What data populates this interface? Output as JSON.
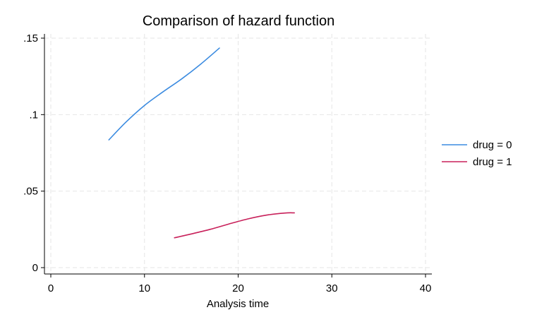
{
  "chart_data": {
    "type": "line",
    "title": "Comparison of hazard function",
    "xlabel": "Analysis time",
    "ylabel": "",
    "xlim": [
      0,
      40
    ],
    "ylim": [
      0,
      0.15
    ],
    "x_ticks": [
      0,
      10,
      20,
      30,
      40
    ],
    "x_tick_labels": [
      "0",
      "10",
      "20",
      "30",
      "40"
    ],
    "y_ticks": [
      0,
      0.05,
      0.1,
      0.15
    ],
    "y_tick_labels": [
      "0",
      ".05",
      ".1",
      ".15"
    ],
    "grid": true,
    "legend_position": "right",
    "series": [
      {
        "name": "drug = 0",
        "color": "#3b8be0",
        "x": [
          6.2,
          8,
          10,
          12,
          14,
          16,
          18
        ],
        "y": [
          0.0835,
          0.095,
          0.106,
          0.115,
          0.1235,
          0.133,
          0.1435
        ]
      },
      {
        "name": "drug = 1",
        "color": "#c8205a",
        "x": [
          13.2,
          15,
          17,
          19,
          21,
          23,
          25,
          26
        ],
        "y": [
          0.0195,
          0.022,
          0.025,
          0.0285,
          0.0318,
          0.0343,
          0.0357,
          0.0358
        ]
      }
    ]
  }
}
